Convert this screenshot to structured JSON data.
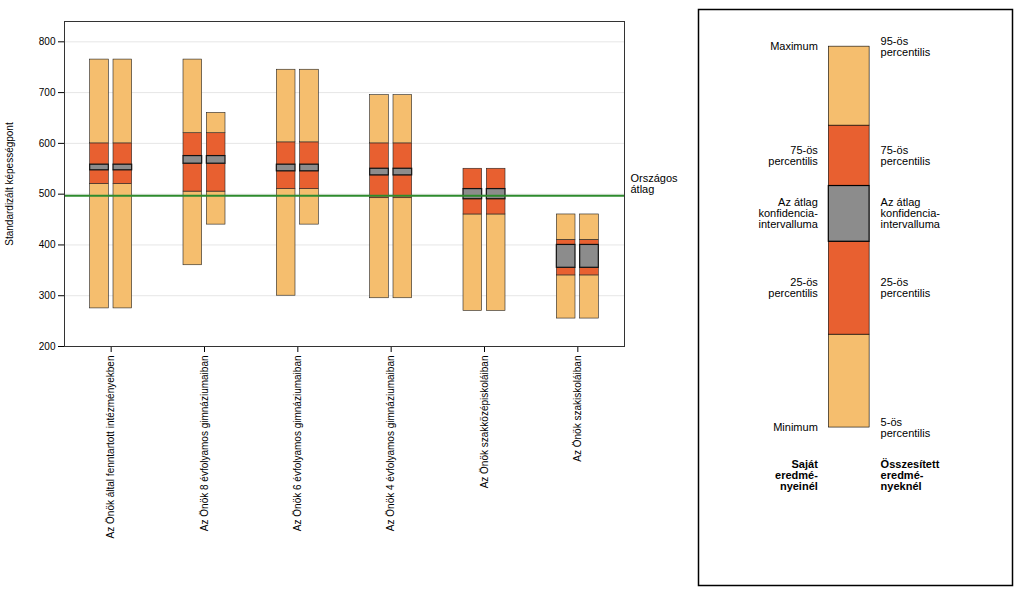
{
  "chart_data": {
    "type": "bar",
    "ylabel": "Standardizált képességpont",
    "ylim": [
      200,
      840
    ],
    "yticks": [
      200,
      300,
      400,
      500,
      600,
      700,
      800
    ],
    "grid": true,
    "categories": [
      "Az Önök által fenntartott intézményekben",
      "Az Önök 8 évfolyamos gimnáziumaiban",
      "Az Önök 6 évfolyamos gimnáziumaiban",
      "Az Önök 4 évfolyamos gimnáziumaiban",
      "Az Önök szakközépiskoláiban",
      "Az Önök szakiskoláiban"
    ],
    "colors": [
      "#F5BE6E",
      "#E86030",
      "#8C8C8C",
      "#E86030",
      "#F5BE6E"
    ],
    "series": [
      {
        "name": "Saját\neredmé-\nnyeinél",
        "labels": [
          "Minimum",
          "25-ös\npercentilis",
          "Az átlag\nkonfidencia-\nintervalluma",
          "75-ös\npercentilis",
          "Maximum"
        ],
        "values": [
          [
            275,
            520,
            547,
            558,
            600,
            765
          ],
          [
            360,
            505,
            560,
            575,
            620,
            765
          ],
          [
            300,
            510,
            545,
            558,
            602,
            745
          ],
          [
            295,
            492,
            537,
            550,
            600,
            695
          ],
          [
            270,
            460,
            490,
            510,
            550,
            520
          ],
          [
            255,
            340,
            355,
            400,
            410,
            460
          ]
        ]
      },
      {
        "name": "Összesített\neredmé-\nnyeknél",
        "labels": [
          "5-ös\npercentilis",
          "25-ös\npercentilis",
          "Az átlag\nkonfidencia-\nintervalluma",
          "75-ös\npercentilis",
          "95-ös\npercentilis"
        ],
        "values": [
          [
            275,
            520,
            547,
            558,
            600,
            765
          ],
          [
            440,
            505,
            560,
            575,
            620,
            660
          ],
          [
            440,
            510,
            545,
            558,
            602,
            745
          ],
          [
            295,
            492,
            537,
            550,
            600,
            695
          ],
          [
            270,
            460,
            490,
            510,
            550,
            520
          ],
          [
            255,
            340,
            355,
            400,
            410,
            460
          ]
        ]
      }
    ],
    "annotations": [
      {
        "y": 497,
        "text": "Országos\nátlag",
        "color": "#2E8B2E"
      }
    ]
  }
}
